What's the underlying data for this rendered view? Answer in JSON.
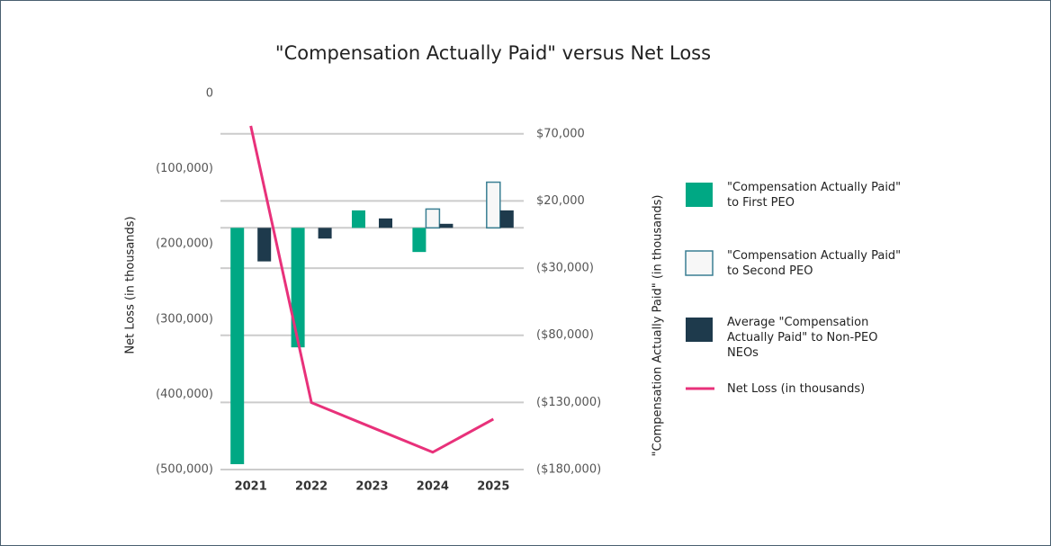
{
  "chart_data": {
    "type": "bar",
    "title": "\"Compensation Actually Paid\" versus Net Loss",
    "categories": [
      "2021",
      "2022",
      "2023",
      "2024",
      "2025"
    ],
    "ylabel": "Net Loss (in thousands)",
    "y2label": "\"Compensation Actually Paid\" (in thousands)",
    "ylim": [
      -500000,
      0
    ],
    "yticks": [
      0,
      {
        "value": -100000,
        "label": "(100,000)"
      },
      {
        "value": -200000,
        "label": "(200,000)"
      },
      {
        "value": -300000,
        "label": "(300,000)"
      },
      {
        "value": -400000,
        "label": "(400,000)"
      },
      {
        "value": -500000,
        "label": "(500,000)"
      }
    ],
    "y2lim": [
      -180000,
      100000
    ],
    "y2ticks": [
      {
        "value": 70000,
        "label": "$70,000"
      },
      {
        "value": 20000,
        "label": "$20,000"
      },
      {
        "value": -30000,
        "label": "($30,000)"
      },
      {
        "value": -80000,
        "label": "($80,000)"
      },
      {
        "value": -130000,
        "label": "($130,000)"
      },
      {
        "value": -180000,
        "label": "($180,000)"
      }
    ],
    "grid": true,
    "series": [
      {
        "name": "\"Compensation Actually Paid\" to First PEO",
        "color": "#00a884",
        "axis": "y2",
        "values": [
          -176000,
          -89000,
          13000,
          -18000,
          null
        ]
      },
      {
        "name": "\"Compensation Actually Paid\" to Second PEO",
        "color": "#f7f7f7",
        "edgecolor": "#3a7f93",
        "axis": "y2",
        "values": [
          null,
          null,
          null,
          14000,
          34000
        ]
      },
      {
        "name": "Average \"Compensation Actually Paid\" to Non-PEO NEOs",
        "color": "#1e3a4c",
        "axis": "y2",
        "values": [
          -25000,
          -8000,
          7000,
          3000,
          13000
        ]
      },
      {
        "name": "Net Loss (in thousands)",
        "color": "#e8317a",
        "type": "line",
        "axis": "y",
        "values": [
          -43000,
          -411000,
          -444000,
          -477000,
          -433000
        ]
      }
    ]
  }
}
